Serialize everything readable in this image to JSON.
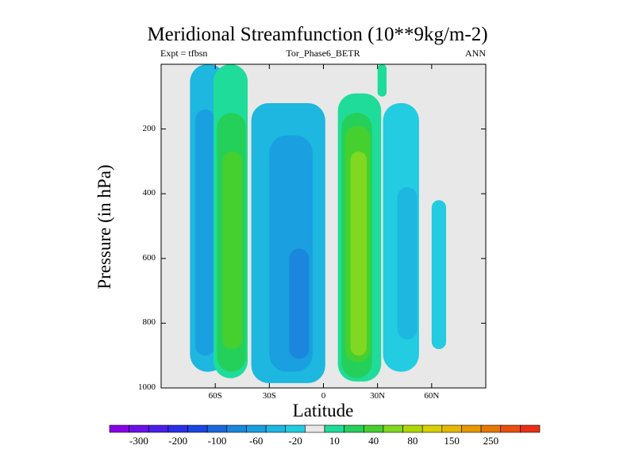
{
  "chart_data": {
    "type": "contour",
    "title": "Meridional Streamfunction (10**9kg/m-2)",
    "subtitle_left": "Expt = tfbsn",
    "subtitle_center": "Tor_Phase6_BETR",
    "subtitle_right": "ANN",
    "xlabel": "Latitude",
    "ylabel": "Pressure (in hPa)",
    "xlim": [
      -90,
      90
    ],
    "ylim": [
      1000,
      0
    ],
    "x_ticks": [
      {
        "value": -60,
        "label": "60S"
      },
      {
        "value": -30,
        "label": "30S"
      },
      {
        "value": 0,
        "label": "0"
      },
      {
        "value": 30,
        "label": "30N"
      },
      {
        "value": 60,
        "label": "60N"
      }
    ],
    "y_ticks": [
      {
        "value": 200,
        "label": "200"
      },
      {
        "value": 400,
        "label": "400"
      },
      {
        "value": 600,
        "label": "600"
      },
      {
        "value": 800,
        "label": "800"
      },
      {
        "value": 1000,
        "label": "1000"
      }
    ],
    "colorbar": {
      "colors": [
        "#8a00e6",
        "#6a10e8",
        "#4b1fe8",
        "#2a2ee6",
        "#1a46e0",
        "#1a66dc",
        "#1a86dc",
        "#1a9fe0",
        "#1db7e0",
        "#23cce0",
        "#e8e8e8",
        "#1fdc9a",
        "#25d05a",
        "#45d030",
        "#80d820",
        "#b0d800",
        "#d8d000",
        "#e8b800",
        "#e89800",
        "#e87800",
        "#e85010",
        "#e83018"
      ],
      "tick_labels": [
        "-300",
        "-200",
        "-100",
        "-60",
        "-20",
        "10",
        "40",
        "80",
        "150",
        "250"
      ],
      "tick_boundaries": [
        1,
        3,
        5,
        7,
        9,
        11,
        13,
        15,
        17,
        19
      ]
    },
    "regions": [
      {
        "level_color": 8,
        "lat_min": -74,
        "lat_max": -54,
        "p_top": 0,
        "p_bottom": 950,
        "label": "SH outer negative cell (-20)"
      },
      {
        "level_color": 7,
        "lat_min": -71,
        "lat_max": -60,
        "p_top": 140,
        "p_bottom": 900,
        "label": "SH outer negative core"
      },
      {
        "level_color": 11,
        "lat_min": -61,
        "lat_max": -42,
        "p_top": 0,
        "p_bottom": 970,
        "label": "SH positive cell (10)"
      },
      {
        "level_color": 12,
        "lat_min": -59,
        "lat_max": -43,
        "p_top": 150,
        "p_bottom": 950,
        "label": "SH positive cell (40)"
      },
      {
        "level_color": 13,
        "lat_min": -56,
        "lat_max": -45,
        "p_top": 270,
        "p_bottom": 880,
        "label": "SH positive core"
      },
      {
        "level_color": 8,
        "lat_min": -40,
        "lat_max": 1,
        "p_top": 120,
        "p_bottom": 985,
        "label": "SH Hadley cell (-20)"
      },
      {
        "level_color": 7,
        "lat_min": -30,
        "lat_max": -6,
        "p_top": 220,
        "p_bottom": 950,
        "label": "SH Hadley cell (-60)"
      },
      {
        "level_color": 6,
        "lat_min": -19,
        "lat_max": -8,
        "p_top": 570,
        "p_bottom": 910,
        "label": "SH Hadley core"
      },
      {
        "level_color": 11,
        "lat_min": 8,
        "lat_max": 32,
        "p_top": 90,
        "p_bottom": 980,
        "label": "NH Hadley cell (10)"
      },
      {
        "level_color": 12,
        "lat_min": 10,
        "lat_max": 27,
        "p_top": 150,
        "p_bottom": 970,
        "label": "NH Hadley cell (40)"
      },
      {
        "level_color": 13,
        "lat_min": 12,
        "lat_max": 26,
        "p_top": 190,
        "p_bottom": 920,
        "label": "NH Hadley cell (80)"
      },
      {
        "level_color": 14,
        "lat_min": 15,
        "lat_max": 24,
        "p_top": 270,
        "p_bottom": 900,
        "label": "NH Hadley core"
      },
      {
        "level_color": 9,
        "lat_min": 33,
        "lat_max": 53,
        "p_top": 120,
        "p_bottom": 950,
        "label": "NH Ferrel cell (-20)"
      },
      {
        "level_color": 8,
        "lat_min": 41,
        "lat_max": 52,
        "p_top": 380,
        "p_bottom": 850,
        "label": "NH Ferrel core"
      },
      {
        "level_color": 9,
        "lat_min": 60,
        "lat_max": 68,
        "p_top": 420,
        "p_bottom": 880,
        "label": "NH polar negative"
      },
      {
        "level_color": 11,
        "lat_min": 30,
        "lat_max": 35,
        "p_top": 0,
        "p_bottom": 100,
        "label": "NH upper positive"
      }
    ]
  }
}
